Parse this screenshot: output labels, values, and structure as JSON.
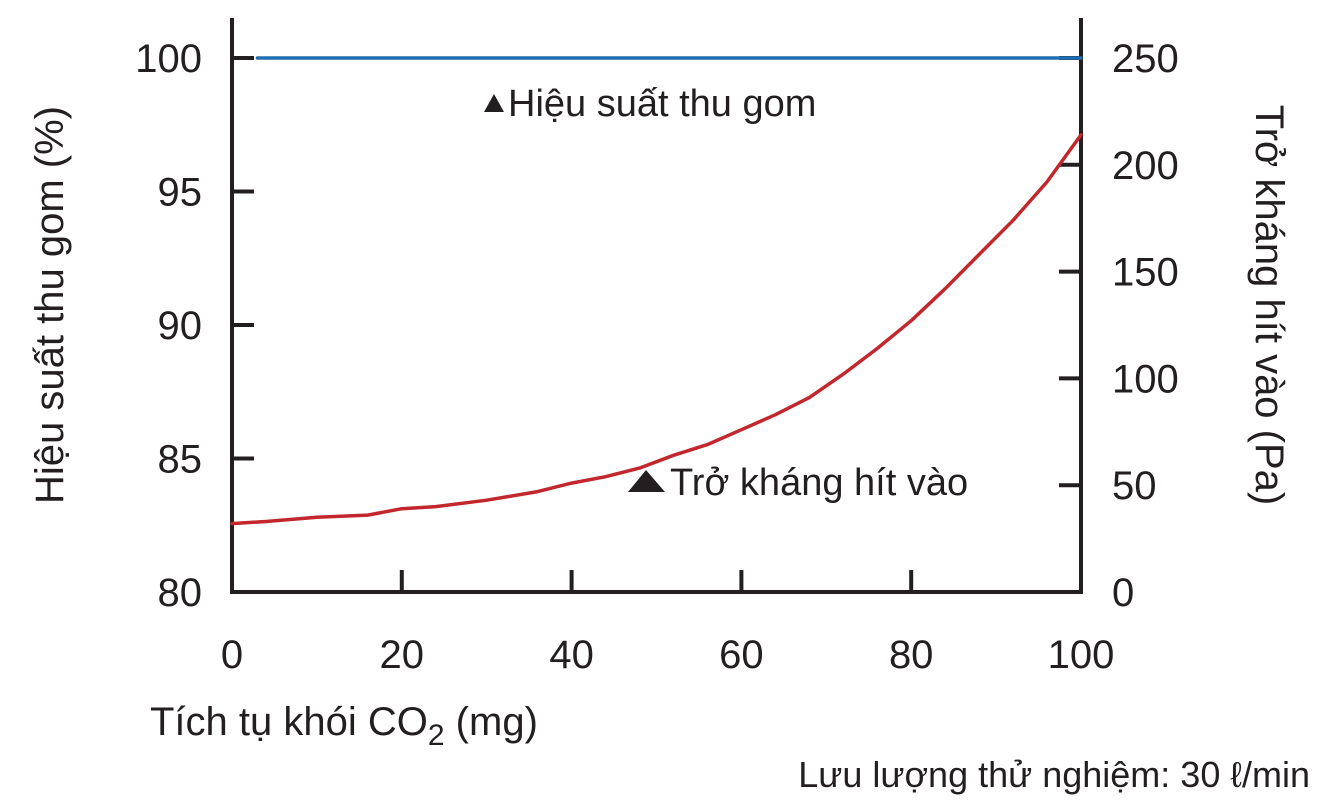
{
  "chart_data": {
    "type": "line",
    "x_axis": {
      "label_main": "Tích tụ khói CO",
      "label_sub": "2",
      "label_unit": " (mg)",
      "range": [
        0,
        100
      ],
      "ticks": [
        "0",
        "20",
        "40",
        "60",
        "80",
        "100"
      ]
    },
    "y_left": {
      "label": "Hiệu suất thu gom (%)",
      "range": [
        80,
        100
      ],
      "ticks": [
        "80",
        "85",
        "90",
        "95",
        "100"
      ]
    },
    "y_right": {
      "label": "Trở kháng hít vào (Pa)",
      "range": [
        0,
        250
      ],
      "ticks": [
        "0",
        "50",
        "100",
        "150",
        "200",
        "250"
      ]
    },
    "series": [
      {
        "name": "Hiệu suất thu gom",
        "axis": "left",
        "color": "#1f6fb0",
        "x": [
          3,
          20,
          40,
          60,
          80,
          100
        ],
        "y": [
          100,
          100,
          100,
          100,
          100,
          100
        ]
      },
      {
        "name": "Trở kháng hít vào",
        "axis": "right",
        "color": "#c1272d",
        "x": [
          0,
          4,
          10,
          16,
          20,
          24,
          30,
          36,
          40,
          44,
          48,
          52,
          56,
          60,
          64,
          68,
          72,
          76,
          80,
          84,
          88,
          92,
          96,
          100
        ],
        "y": [
          32,
          33,
          35,
          36,
          39,
          40,
          43,
          47,
          51,
          54,
          58,
          64,
          69,
          76,
          83,
          91,
          102,
          114,
          127,
          142,
          158,
          174,
          192,
          214
        ]
      }
    ],
    "annotations": [
      {
        "marker": "▲",
        "text": "Hiệu suất thu gom"
      },
      {
        "marker": "▲",
        "text": "Trở kháng hít vào"
      }
    ],
    "note": "Lưu lượng thử nghiệm: 30 ℓ/min",
    "grid": false
  }
}
